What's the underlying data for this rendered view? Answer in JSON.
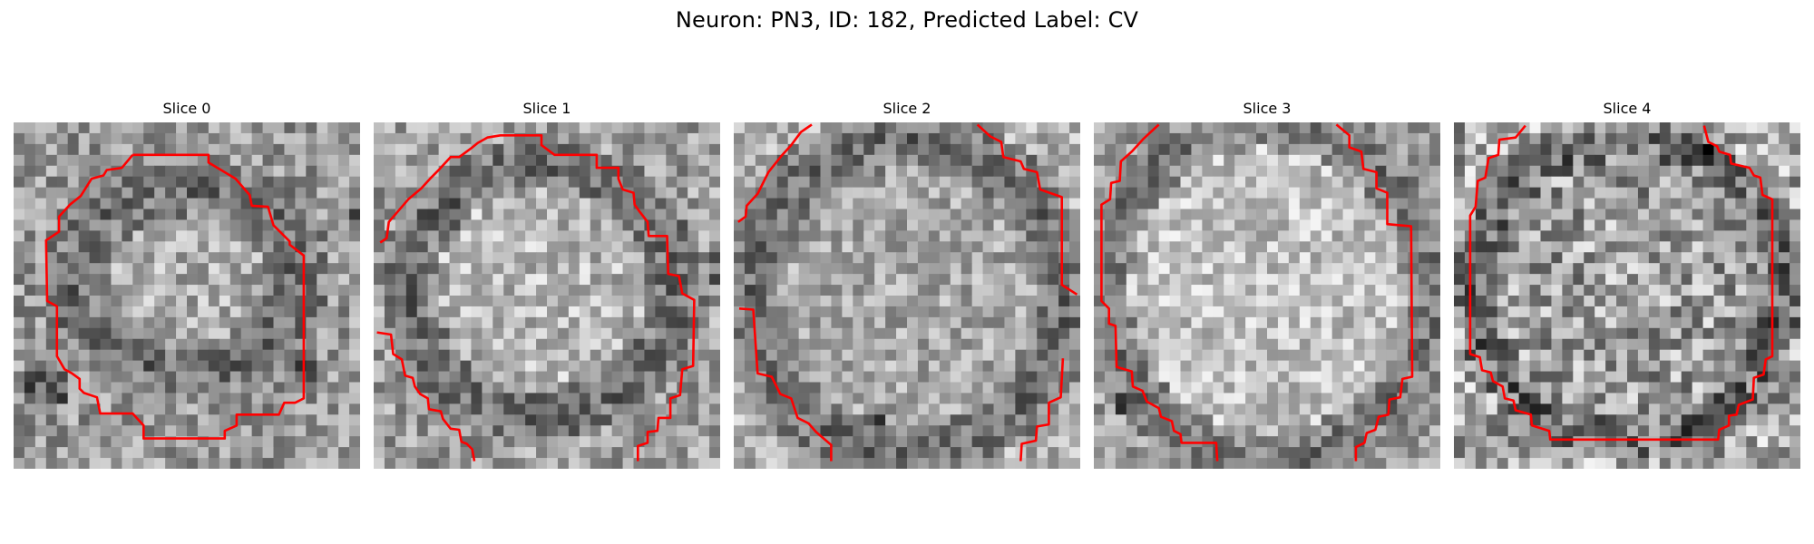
{
  "figure": {
    "title": "Neuron: PN3, ID: 182, Predicted Label: CV"
  },
  "slices": [
    {
      "title": "Slice 0",
      "outline_color": "#ff0000",
      "image": "grayscale-microscopy-patch"
    },
    {
      "title": "Slice 1",
      "outline_color": "#ff0000",
      "image": "grayscale-microscopy-patch"
    },
    {
      "title": "Slice 2",
      "outline_color": "#ff0000",
      "image": "grayscale-microscopy-patch"
    },
    {
      "title": "Slice 3",
      "outline_color": "#ff0000",
      "image": "grayscale-microscopy-patch"
    },
    {
      "title": "Slice 4",
      "outline_color": "#ff0000",
      "image": "grayscale-microscopy-patch"
    }
  ]
}
